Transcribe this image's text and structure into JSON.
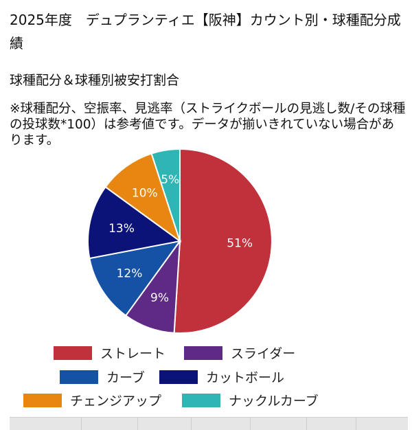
{
  "header": {
    "title": "2025年度　デュプランティエ【阪神】カウント別・球種配分成績"
  },
  "section": {
    "title": "球種配分＆球種別被安打割合",
    "note": "※球種配分、空振率、見逃率（ストライクボールの見逃し数/その球種の投球数*100）は参考値です。データが揃いきれていない場合があります。"
  },
  "chart_data": {
    "type": "pie",
    "title": "",
    "labels": [
      "ストレート",
      "スライダー",
      "カーブ",
      "カットボール",
      "チェンジアップ",
      "ナックルカーブ"
    ],
    "values": [
      51,
      9,
      12,
      13,
      10,
      5
    ],
    "value_labels": [
      "51%",
      "9%",
      "12%",
      "13%",
      "10%",
      "5%"
    ],
    "colors": [
      "#C0313C",
      "#5E2A86",
      "#1551A4",
      "#0B1278",
      "#E88612",
      "#2FB6B4"
    ],
    "start": "12 o'clock",
    "direction": "clockwise",
    "legend_position": "bottom"
  }
}
